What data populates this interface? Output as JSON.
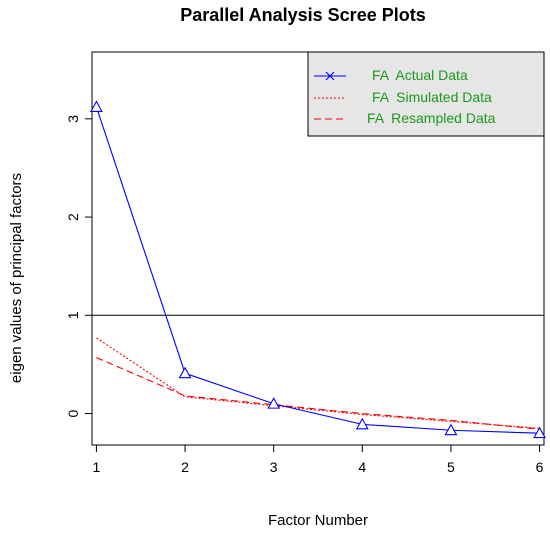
{
  "chart_data": {
    "type": "line",
    "title": "Parallel Analysis Scree Plots",
    "xlabel": "Factor Number",
    "ylabel": "eigen values of principal factors",
    "x": [
      1,
      2,
      3,
      4,
      5,
      6
    ],
    "xlim": [
      0.95,
      6.05
    ],
    "ylim": [
      -0.32,
      3.68
    ],
    "xticks": [
      1,
      2,
      3,
      4,
      5,
      6
    ],
    "yticks": [
      0,
      1,
      2,
      3
    ],
    "reference_line": 1,
    "series": [
      {
        "name": "FA  Actual Data",
        "values": [
          3.12,
          0.41,
          0.1,
          -0.11,
          -0.17,
          -0.2
        ],
        "color": "#0000ff",
        "line_style": "solid",
        "marker": "triangle"
      },
      {
        "name": "FA  Simulated Data",
        "values": [
          0.77,
          0.17,
          0.08,
          -0.01,
          -0.08,
          -0.15
        ],
        "color": "#ff0000",
        "line_style": "dotted",
        "marker": "none"
      },
      {
        "name": "FA  Resampled Data",
        "values": [
          0.57,
          0.18,
          0.09,
          0.0,
          -0.07,
          -0.16
        ],
        "color": "#ff0000",
        "line_style": "dashed",
        "marker": "none"
      }
    ],
    "legend": {
      "placement": "top-right",
      "background": "#e6e6e6",
      "text_color": "#1a9a1a",
      "entries": [
        "FA  Actual Data",
        "FA  Simulated Data",
        "FA  Resampled Data"
      ]
    },
    "grid": false
  }
}
